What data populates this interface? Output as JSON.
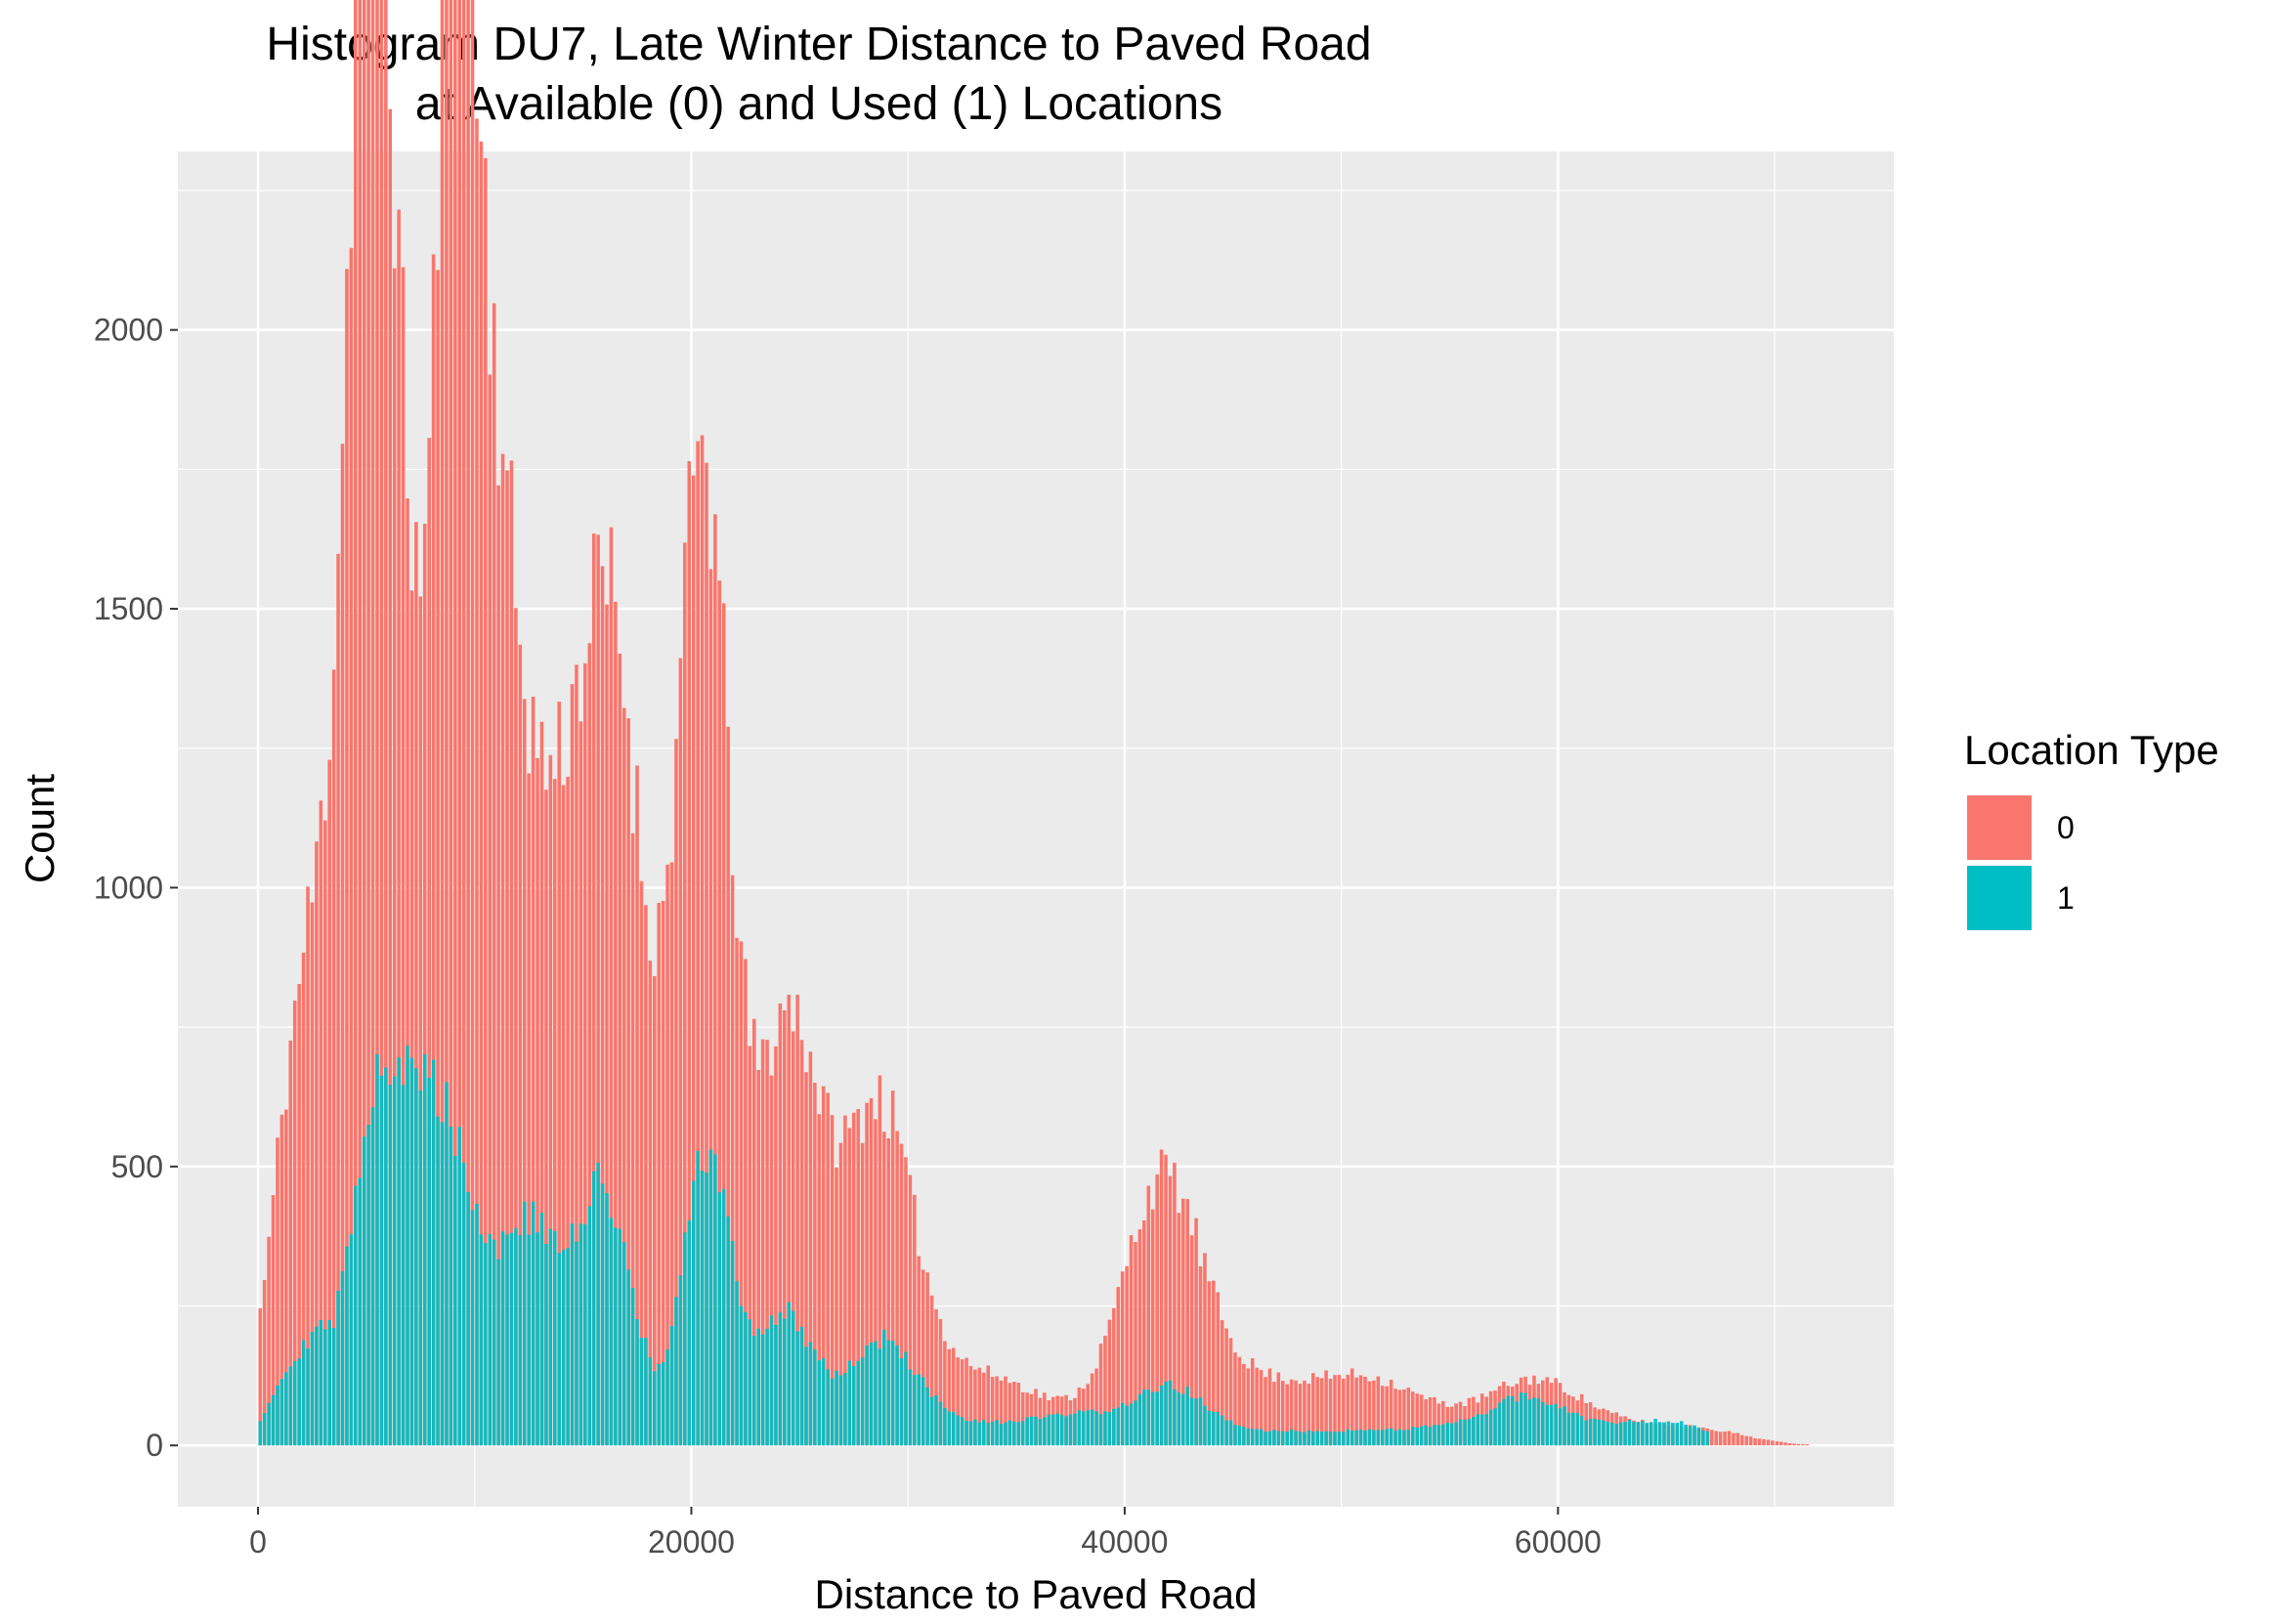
{
  "chart_data": {
    "type": "bar",
    "title": [
      "Histogram DU7, Late Winter Distance to Paved Road",
      "at Available (0) and Used (1) Locations"
    ],
    "xlabel": "Distance to Paved Road",
    "ylabel": "Count",
    "xlim": [
      -3700,
      75500
    ],
    "ylim": [
      -110,
      2320
    ],
    "x_ticks": [
      0,
      20000,
      40000,
      60000
    ],
    "x_tick_labels": [
      "0",
      "20000",
      "40000",
      "60000"
    ],
    "y_ticks": [
      0,
      500,
      1000,
      1500,
      2000
    ],
    "y_tick_labels": [
      "0",
      "500",
      "1000",
      "1500",
      "2000"
    ],
    "grid": true,
    "legend": {
      "title": "Location Type",
      "position": "right"
    },
    "bin_width": 200,
    "x": [
      0,
      10000,
      20000,
      30000,
      40000,
      50000,
      60000,
      70000
    ],
    "series": [
      {
        "name": "0",
        "color": "#F8766D",
        "peaks": [
          [
            0,
            0.05,
            120,
            0.05
          ],
          [
            1000,
            0.9,
            220,
            0.25
          ],
          [
            2500,
            1.2,
            650,
            0.3
          ],
          [
            5100,
            0.95,
            1500,
            0.35
          ],
          [
            6000,
            1.8,
            1650,
            0.45
          ],
          [
            9000,
            0.75,
            1750,
            0.7
          ],
          [
            10300,
            1.2,
            1500,
            0.4
          ],
          [
            12500,
            1.6,
            900,
            0.4
          ],
          [
            15500,
            1.5,
            1050,
            0.4
          ],
          [
            17000,
            1.2,
            650,
            0.4
          ],
          [
            20500,
            1.25,
            1750,
            0.45
          ],
          [
            24500,
            1.5,
            750,
            0.35
          ],
          [
            28600,
            1.6,
            550,
            0.35
          ],
          [
            33000,
            3.5,
            130,
            0.25
          ],
          [
            41700,
            1.8,
            440,
            0.35
          ],
          [
            46000,
            3,
            110,
            0.3
          ],
          [
            51300,
            2.2,
            90,
            0.3
          ],
          [
            56500,
            3,
            50,
            0.25
          ],
          [
            59000,
            1.8,
            60,
            0.25
          ],
          [
            62000,
            3,
            40,
            0.2
          ],
          [
            67000,
            2,
            20,
            0.2
          ]
        ],
        "range": [
          0,
          72000
        ],
        "seed": 11
      },
      {
        "name": "1",
        "color": "#00BFC4",
        "peaks": [
          [
            800,
            0.7,
            60,
            0.3
          ],
          [
            2500,
            1,
            180,
            0.3
          ],
          [
            5100,
            0.9,
            280,
            0.3
          ],
          [
            6300,
            1.4,
            470,
            0.35
          ],
          [
            8800,
            1.4,
            500,
            0.4
          ],
          [
            12500,
            1.4,
            380,
            0.35
          ],
          [
            16000,
            1.3,
            450,
            0.35
          ],
          [
            20700,
            1.1,
            520,
            0.4
          ],
          [
            24300,
            1.4,
            230,
            0.35
          ],
          [
            28800,
            1.6,
            170,
            0.35
          ],
          [
            32000,
            3,
            30,
            0.3
          ],
          [
            38500,
            3,
            50,
            0.3
          ],
          [
            42300,
            1.5,
            70,
            0.35
          ],
          [
            48000,
            5,
            25,
            0.3
          ],
          [
            56000,
            3,
            25,
            0.3
          ],
          [
            58500,
            1.5,
            50,
            0.3
          ],
          [
            62000,
            3,
            35,
            0.3
          ],
          [
            65500,
            1.5,
            25,
            0.3
          ]
        ],
        "range": [
          0,
          67000
        ],
        "seed": 29
      }
    ]
  }
}
